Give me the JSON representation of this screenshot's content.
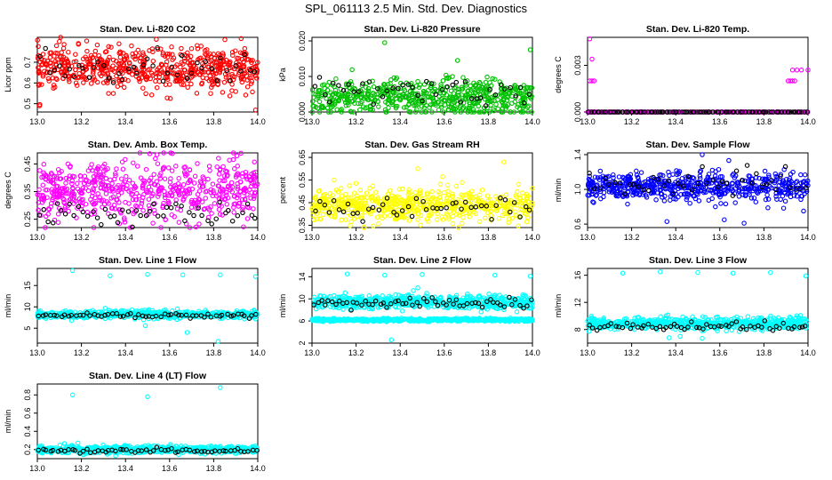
{
  "title": "SPL_061113  2.5 Min. Std. Dev. Diagnostics",
  "colors": {
    "red": "#ff0000",
    "green": "#00c000",
    "magenta": "#ff00ff",
    "yellow": "#ffff00",
    "blue": "#0000ff",
    "cyan": "#00ffff",
    "black": "#000000"
  },
  "chart_data": [
    {
      "type": "scatter",
      "title": "Stan. Dev. Li-820 CO2",
      "ylabel": "Licor ppm",
      "color": "#ff0000",
      "x_ticks": [
        "13.0",
        "13.2",
        "13.4",
        "13.6",
        "13.8",
        "14.0"
      ],
      "xlim": [
        13.0,
        14.0
      ],
      "y_ticks": [
        "0.5",
        "0.6",
        "0.7"
      ],
      "y_tick_values": [
        0.5,
        0.6,
        0.7
      ],
      "ylim": [
        0.46,
        0.82
      ],
      "bulk": {
        "count": 600,
        "center": 0.67,
        "spread": 0.05
      },
      "black": {
        "count": 45,
        "center": 0.67,
        "spread": 0.04
      },
      "outliers": [
        {
          "x": 13.1,
          "y": 0.8
        },
        {
          "x": 13.54,
          "y": 0.81
        },
        {
          "x": 13.99,
          "y": 0.47
        },
        {
          "x": 13.01,
          "y": 0.49
        }
      ]
    },
    {
      "type": "scatter",
      "title": "Stan. Dev. Li-820 Pressure",
      "ylabel": "kPa",
      "color": "#00c000",
      "x_ticks": [
        "13.0",
        "13.2",
        "13.4",
        "13.6",
        "13.8",
        "14.0"
      ],
      "xlim": [
        13.0,
        14.0
      ],
      "y_ticks": [
        "0.000",
        "0.010",
        "0.020"
      ],
      "y_tick_values": [
        0.0,
        0.01,
        0.02
      ],
      "ylim": [
        0.0,
        0.021
      ],
      "bulk": {
        "count": 600,
        "center": 0.004,
        "spread": 0.0025
      },
      "black": {
        "count": 45,
        "center": 0.006,
        "spread": 0.002
      },
      "outliers": [
        {
          "x": 13.33,
          "y": 0.0195
        },
        {
          "x": 13.99,
          "y": 0.0175
        },
        {
          "x": 13.66,
          "y": 0.0145
        }
      ]
    },
    {
      "type": "scatter",
      "title": "Stan. Dev. Li-820 Temp.",
      "ylabel": "degrees C",
      "color": "#ff00ff",
      "x_ticks": [
        "13.0",
        "13.2",
        "13.4",
        "13.6",
        "13.8",
        "14.0"
      ],
      "xlim": [
        13.0,
        14.0
      ],
      "y_ticks": [
        "0.000",
        "0.003"
      ],
      "y_tick_values": [
        0.0,
        0.003
      ],
      "ylim": [
        0.0,
        0.0048
      ],
      "bulk": {
        "count": 200,
        "center": 0.0,
        "spread": 0.0
      },
      "black": {
        "count": 100,
        "center": 0.0,
        "spread": 0.0
      },
      "outliers": [
        {
          "x": 13.01,
          "y": 0.0047
        },
        {
          "x": 13.02,
          "y": 0.0034
        },
        {
          "x": 13.01,
          "y": 0.002
        },
        {
          "x": 13.02,
          "y": 0.002
        },
        {
          "x": 13.03,
          "y": 0.002
        },
        {
          "x": 13.91,
          "y": 0.002
        },
        {
          "x": 13.92,
          "y": 0.002
        },
        {
          "x": 13.93,
          "y": 0.002
        },
        {
          "x": 13.94,
          "y": 0.002
        },
        {
          "x": 13.93,
          "y": 0.0027
        },
        {
          "x": 13.95,
          "y": 0.0027
        },
        {
          "x": 13.97,
          "y": 0.0027
        },
        {
          "x": 14.0,
          "y": 0.0027
        }
      ]
    },
    {
      "type": "scatter",
      "title": "Stan. Dev. Amb. Box Temp.",
      "ylabel": "degrees C",
      "color": "#ff00ff",
      "x_ticks": [
        "13.0",
        "13.2",
        "13.4",
        "13.6",
        "13.8",
        "14.0"
      ],
      "xlim": [
        13.0,
        14.0
      ],
      "y_ticks": [
        "0.25",
        "0.35",
        "0.45"
      ],
      "y_tick_values": [
        0.25,
        0.35,
        0.45
      ],
      "ylim": [
        0.22,
        0.49
      ],
      "bulk": {
        "count": 600,
        "center": 0.35,
        "spread": 0.055
      },
      "black": {
        "count": 50,
        "center": 0.27,
        "spread": 0.02
      },
      "outliers": []
    },
    {
      "type": "scatter",
      "title": "Stan. Dev. Gas Stream RH",
      "ylabel": "percent",
      "color": "#ffff00",
      "x_ticks": [
        "13.0",
        "13.2",
        "13.4",
        "13.6",
        "13.8",
        "14.0"
      ],
      "xlim": [
        13.0,
        14.0
      ],
      "y_ticks": [
        "0.35",
        "0.45",
        "0.55",
        "0.65"
      ],
      "y_tick_values": [
        0.35,
        0.45,
        0.55,
        0.65
      ],
      "ylim": [
        0.34,
        0.67
      ],
      "bulk": {
        "count": 600,
        "center": 0.44,
        "spread": 0.035
      },
      "black": {
        "count": 45,
        "center": 0.43,
        "spread": 0.025
      },
      "outliers": [
        {
          "x": 13.87,
          "y": 0.63
        },
        {
          "x": 13.1,
          "y": 0.55
        },
        {
          "x": 13.48,
          "y": 0.6
        }
      ]
    },
    {
      "type": "scatter",
      "title": "Stan. Dev. Sample Flow",
      "ylabel": "ml/min",
      "color": "#0000ff",
      "x_ticks": [
        "13.0",
        "13.2",
        "13.4",
        "13.6",
        "13.8",
        "14.0"
      ],
      "xlim": [
        13.0,
        14.0
      ],
      "y_ticks": [
        "0.6",
        "1.0",
        "1.4"
      ],
      "y_tick_values": [
        0.6,
        1.0,
        1.4
      ],
      "ylim": [
        0.56,
        1.42
      ],
      "bulk": {
        "count": 600,
        "center": 1.03,
        "spread": 0.08
      },
      "black": {
        "count": 45,
        "center": 1.07,
        "spread": 0.08
      },
      "outliers": [
        {
          "x": 13.36,
          "y": 0.63
        },
        {
          "x": 13.62,
          "y": 0.65
        },
        {
          "x": 13.71,
          "y": 0.61
        },
        {
          "x": 13.98,
          "y": 0.75
        },
        {
          "x": 13.52,
          "y": 1.4
        },
        {
          "x": 13.58,
          "y": 0.8
        }
      ]
    },
    {
      "type": "scatter",
      "title": "Stan. Dev. Line 1 Flow",
      "ylabel": "ml/min",
      "color": "#00ffff",
      "x_ticks": [
        "13.0",
        "13.2",
        "13.4",
        "13.6",
        "13.8",
        "14.0"
      ],
      "xlim": [
        13.0,
        14.0
      ],
      "y_ticks": [
        "5",
        "10",
        "15"
      ],
      "y_tick_values": [
        5,
        10,
        15
      ],
      "ylim": [
        1.5,
        19
      ],
      "bulk": {
        "count": 600,
        "center": 8.2,
        "spread": 0.45
      },
      "black": {
        "count": 60,
        "center": 8.0,
        "spread": 0.3
      },
      "outliers": [
        {
          "x": 13.16,
          "y": 18.5
        },
        {
          "x": 13.33,
          "y": 17.3
        },
        {
          "x": 13.5,
          "y": 17.6
        },
        {
          "x": 13.66,
          "y": 17.5
        },
        {
          "x": 13.83,
          "y": 17.5
        },
        {
          "x": 13.99,
          "y": 17.1
        },
        {
          "x": 13.82,
          "y": 1.9
        },
        {
          "x": 13.68,
          "y": 4.0
        },
        {
          "x": 13.49,
          "y": 5.6
        }
      ]
    },
    {
      "type": "scatter",
      "title": "Stan. Dev. Line 2 Flow",
      "ylabel": "ml/min",
      "color": "#00ffff",
      "x_ticks": [
        "13.0",
        "13.2",
        "13.4",
        "13.6",
        "13.8",
        "14.0"
      ],
      "xlim": [
        13.0,
        14.0
      ],
      "y_ticks": [
        "2",
        "6",
        "10",
        "14"
      ],
      "y_tick_values": [
        2,
        6,
        10,
        14
      ],
      "ylim": [
        2,
        15.5
      ],
      "bulk": {
        "count": 600,
        "center": 9.4,
        "spread": 0.6
      },
      "black": {
        "count": 60,
        "center": 9.2,
        "spread": 0.5
      },
      "band2": {
        "count": 600,
        "center": 6.2,
        "spread": 0.12
      },
      "outliers": [
        {
          "x": 13.16,
          "y": 14.5
        },
        {
          "x": 13.33,
          "y": 14.3
        },
        {
          "x": 13.5,
          "y": 14.4
        },
        {
          "x": 13.83,
          "y": 14.3
        },
        {
          "x": 13.99,
          "y": 14.1
        },
        {
          "x": 13.36,
          "y": 2.6
        },
        {
          "x": 13.48,
          "y": 12.0
        },
        {
          "x": 13.46,
          "y": 11.5
        },
        {
          "x": 13.52,
          "y": 11.0
        }
      ]
    },
    {
      "type": "scatter",
      "title": "Stan. Dev. Line 3 Flow",
      "ylabel": "ml/min",
      "color": "#00ffff",
      "x_ticks": [
        "13.0",
        "13.2",
        "13.4",
        "13.6",
        "13.8",
        "14.0"
      ],
      "xlim": [
        13.0,
        14.0
      ],
      "y_ticks": [
        "8",
        "12",
        "16"
      ],
      "y_tick_values": [
        8,
        12,
        16
      ],
      "ylim": [
        6,
        17
      ],
      "bulk": {
        "count": 600,
        "center": 8.9,
        "spread": 0.45
      },
      "black": {
        "count": 60,
        "center": 8.4,
        "spread": 0.3
      },
      "outliers": [
        {
          "x": 13.16,
          "y": 16.3
        },
        {
          "x": 13.33,
          "y": 16.5
        },
        {
          "x": 13.5,
          "y": 16.4
        },
        {
          "x": 13.66,
          "y": 16.3
        },
        {
          "x": 13.83,
          "y": 16.4
        },
        {
          "x": 13.99,
          "y": 15.9
        },
        {
          "x": 13.37,
          "y": 6.8
        },
        {
          "x": 13.42,
          "y": 7.0
        },
        {
          "x": 13.52,
          "y": 6.7
        }
      ]
    },
    {
      "type": "scatter",
      "title": "Stan. Dev. Line 4 (LT) Flow",
      "ylabel": "ml/min",
      "color": "#00ffff",
      "x_ticks": [
        "13.0",
        "13.2",
        "13.4",
        "13.6",
        "13.8",
        "14.0"
      ],
      "xlim": [
        13.0,
        14.0
      ],
      "y_ticks": [
        "0.2",
        "0.4",
        "0.6",
        "0.8"
      ],
      "y_tick_values": [
        0.2,
        0.4,
        0.6,
        0.8
      ],
      "ylim": [
        0.1,
        0.92
      ],
      "bulk": {
        "count": 600,
        "center": 0.2,
        "spread": 0.02
      },
      "black": {
        "count": 60,
        "center": 0.19,
        "spread": 0.015
      },
      "outliers": [
        {
          "x": 13.16,
          "y": 0.8
        },
        {
          "x": 13.5,
          "y": 0.78
        },
        {
          "x": 13.83,
          "y": 0.88
        }
      ]
    }
  ]
}
